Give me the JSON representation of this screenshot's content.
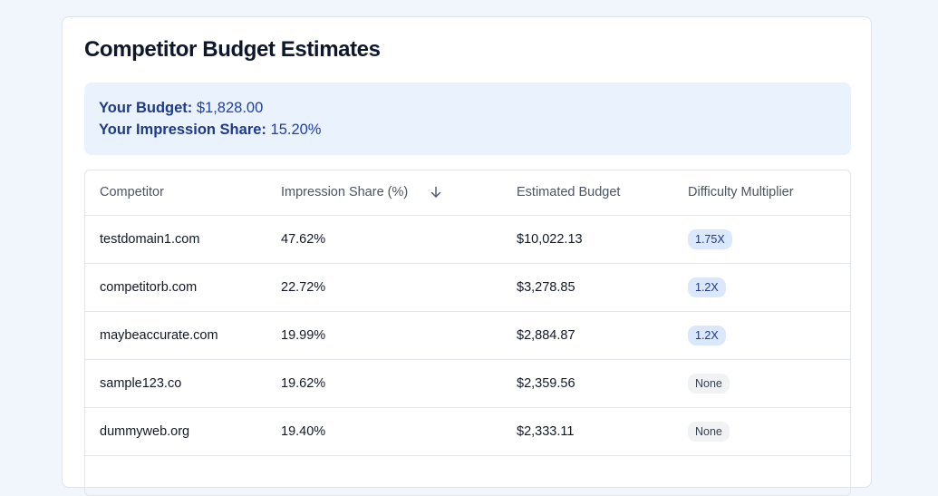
{
  "title": "Competitor Budget Estimates",
  "summary": {
    "budget_label": "Your Budget:",
    "budget_value": "$1,828.00",
    "share_label": "Your Impression Share:",
    "share_value": "15.20%"
  },
  "table": {
    "headers": {
      "competitor": "Competitor",
      "impression_share": "Impression Share (%)",
      "estimated_budget": "Estimated Budget",
      "difficulty": "Difficulty Multiplier"
    },
    "sort_icon": "arrow-down-icon",
    "rows": [
      {
        "competitor": "testdomain1.com",
        "impression_share": "47.62%",
        "estimated_budget": "$10,022.13",
        "difficulty": "1.75X"
      },
      {
        "competitor": "competitorb.com",
        "impression_share": "22.72%",
        "estimated_budget": "$3,278.85",
        "difficulty": "1.2X"
      },
      {
        "competitor": "maybeaccurate.com",
        "impression_share": "19.99%",
        "estimated_budget": "$2,884.87",
        "difficulty": "1.2X"
      },
      {
        "competitor": "sample123.co",
        "impression_share": "19.62%",
        "estimated_budget": "$2,359.56",
        "difficulty": "None"
      },
      {
        "competitor": "dummyweb.org",
        "impression_share": "19.40%",
        "estimated_budget": "$2,333.11",
        "difficulty": "None"
      }
    ]
  },
  "colors": {
    "page_background": "#f1f6fd",
    "summary_background": "#eaf2fd",
    "summary_text": "#1e3a8a",
    "multiplier_badge": "#dbe7fb",
    "none_badge": "#f1f2f4"
  }
}
